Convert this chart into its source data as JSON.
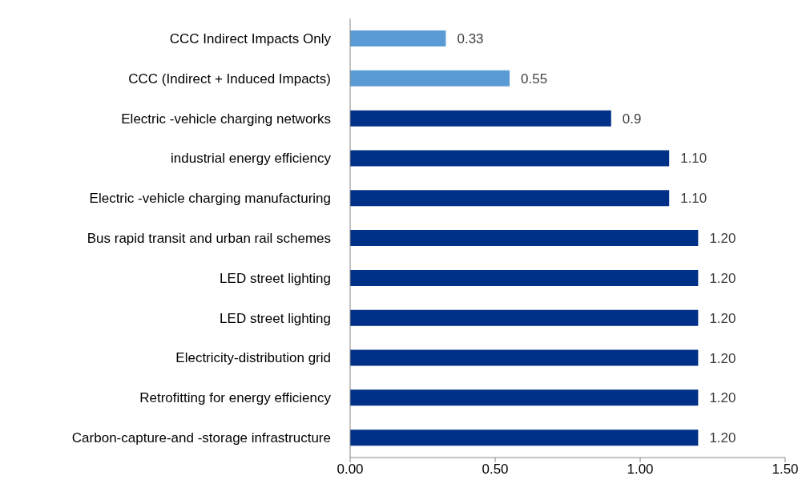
{
  "chart_data": {
    "type": "bar",
    "orientation": "horizontal",
    "categories": [
      "CCC Indirect Impacts Only",
      "CCC (Indirect + Induced Impacts)",
      "Electric -vehicle charging networks",
      "industrial energy efficiency",
      "Electric -vehicle charging manufacturing",
      "Bus rapid transit and urban rail schemes",
      "LED street lighting",
      "LED street lighting",
      "Electricity-distribution grid",
      "Retrofitting for energy efficiency",
      "Carbon-capture-and -storage infrastructure"
    ],
    "values": [
      0.33,
      0.55,
      0.9,
      1.1,
      1.1,
      1.2,
      1.2,
      1.2,
      1.2,
      1.2,
      1.2
    ],
    "value_labels": [
      "0.33",
      "0.55",
      "0.9",
      "1.10",
      "1.10",
      "1.20",
      "1.20",
      "1.20",
      "1.20",
      "1.20",
      "1.20"
    ],
    "colors": [
      "#5b9bd5",
      "#5b9bd5",
      "#003087",
      "#003087",
      "#003087",
      "#003087",
      "#003087",
      "#003087",
      "#003087",
      "#003087",
      "#003087"
    ],
    "xlim": [
      0,
      1.5
    ],
    "xticks": [
      {
        "value": 0,
        "label": "0.00"
      },
      {
        "value": 0.5,
        "label": "0.50"
      },
      {
        "value": 1,
        "label": "1.00"
      },
      {
        "value": 1.5,
        "label": "1.50"
      }
    ],
    "grid": false,
    "legend": false
  }
}
